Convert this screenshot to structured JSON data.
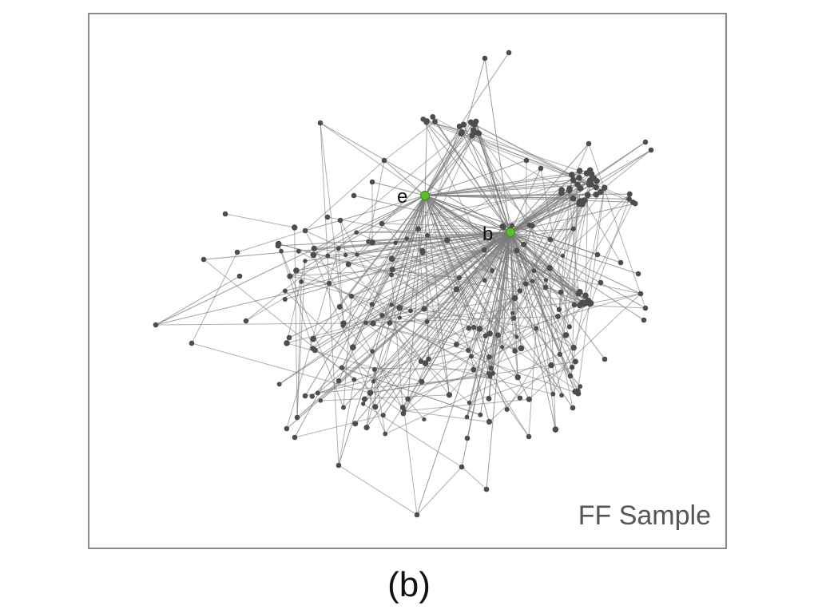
{
  "panel": {
    "sample_label": "FF Sample",
    "caption": "(b)"
  },
  "graph": {
    "edge_color": "#7a7a7a",
    "node_color": "#4d4d4d",
    "hub_color": "#5bbf2a",
    "hubs": [
      {
        "id": "e",
        "label": "e"
      },
      {
        "id": "b",
        "label": "b"
      }
    ]
  }
}
